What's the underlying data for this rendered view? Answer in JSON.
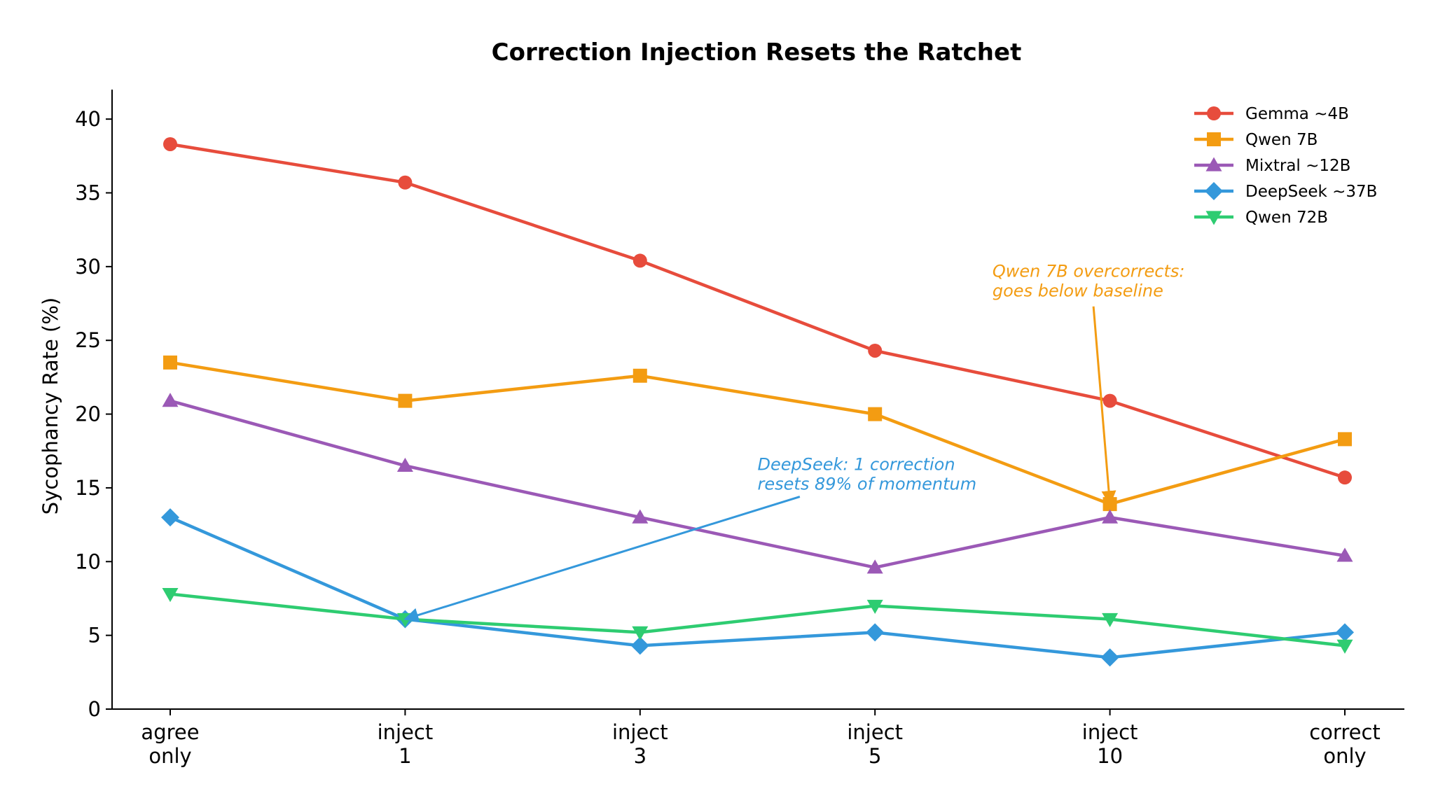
{
  "chart_data": {
    "type": "line",
    "title": "Correction Injection Resets the Ratchet",
    "xlabel": "",
    "ylabel": "Sycophancy Rate (%)",
    "ylim": [
      0,
      42
    ],
    "yticks": [
      0,
      5,
      10,
      15,
      20,
      25,
      30,
      35,
      40
    ],
    "categories": [
      [
        "agree",
        "only"
      ],
      [
        "inject",
        "1"
      ],
      [
        "inject",
        "3"
      ],
      [
        "inject",
        "5"
      ],
      [
        "inject",
        "10"
      ],
      [
        "correct",
        "only"
      ]
    ],
    "grid": false,
    "legend_position": "top-right",
    "series": [
      {
        "name": "Gemma ~4B",
        "color": "#e74c3c",
        "marker": "circle",
        "values": [
          38.3,
          35.7,
          30.4,
          24.3,
          20.9,
          15.7
        ]
      },
      {
        "name": "Qwen 7B",
        "color": "#f39c12",
        "marker": "square",
        "values": [
          23.5,
          20.9,
          22.6,
          20.0,
          13.9,
          18.3
        ]
      },
      {
        "name": "Mixtral ~12B",
        "color": "#9b59b6",
        "marker": "triangle-up",
        "values": [
          20.9,
          16.5,
          13.0,
          9.6,
          13.0,
          10.4
        ]
      },
      {
        "name": "DeepSeek ~37B",
        "color": "#3498db",
        "marker": "diamond",
        "values": [
          13.0,
          6.1,
          4.3,
          5.2,
          3.5,
          5.2
        ]
      },
      {
        "name": "Qwen 72B",
        "color": "#2ecc71",
        "marker": "triangle-down",
        "values": [
          7.8,
          6.1,
          5.2,
          7.0,
          6.1,
          4.3
        ]
      }
    ],
    "annotations": [
      {
        "lines": [
          "DeepSeek: 1 correction",
          "resets 89% of momentum"
        ],
        "color": "#3498db",
        "text_x": 2.5,
        "text_y": 16.2,
        "arrow_from": [
          2.68,
          14.4
        ],
        "arrow_to": [
          1.0,
          6.1
        ]
      },
      {
        "lines": [
          "Qwen 7B overcorrects:",
          "goes below baseline"
        ],
        "color": "#f39c12",
        "text_x": 3.5,
        "text_y": 29.3,
        "arrow_from": [
          3.93,
          27.3
        ],
        "arrow_to": [
          4.0,
          13.9
        ]
      }
    ]
  }
}
